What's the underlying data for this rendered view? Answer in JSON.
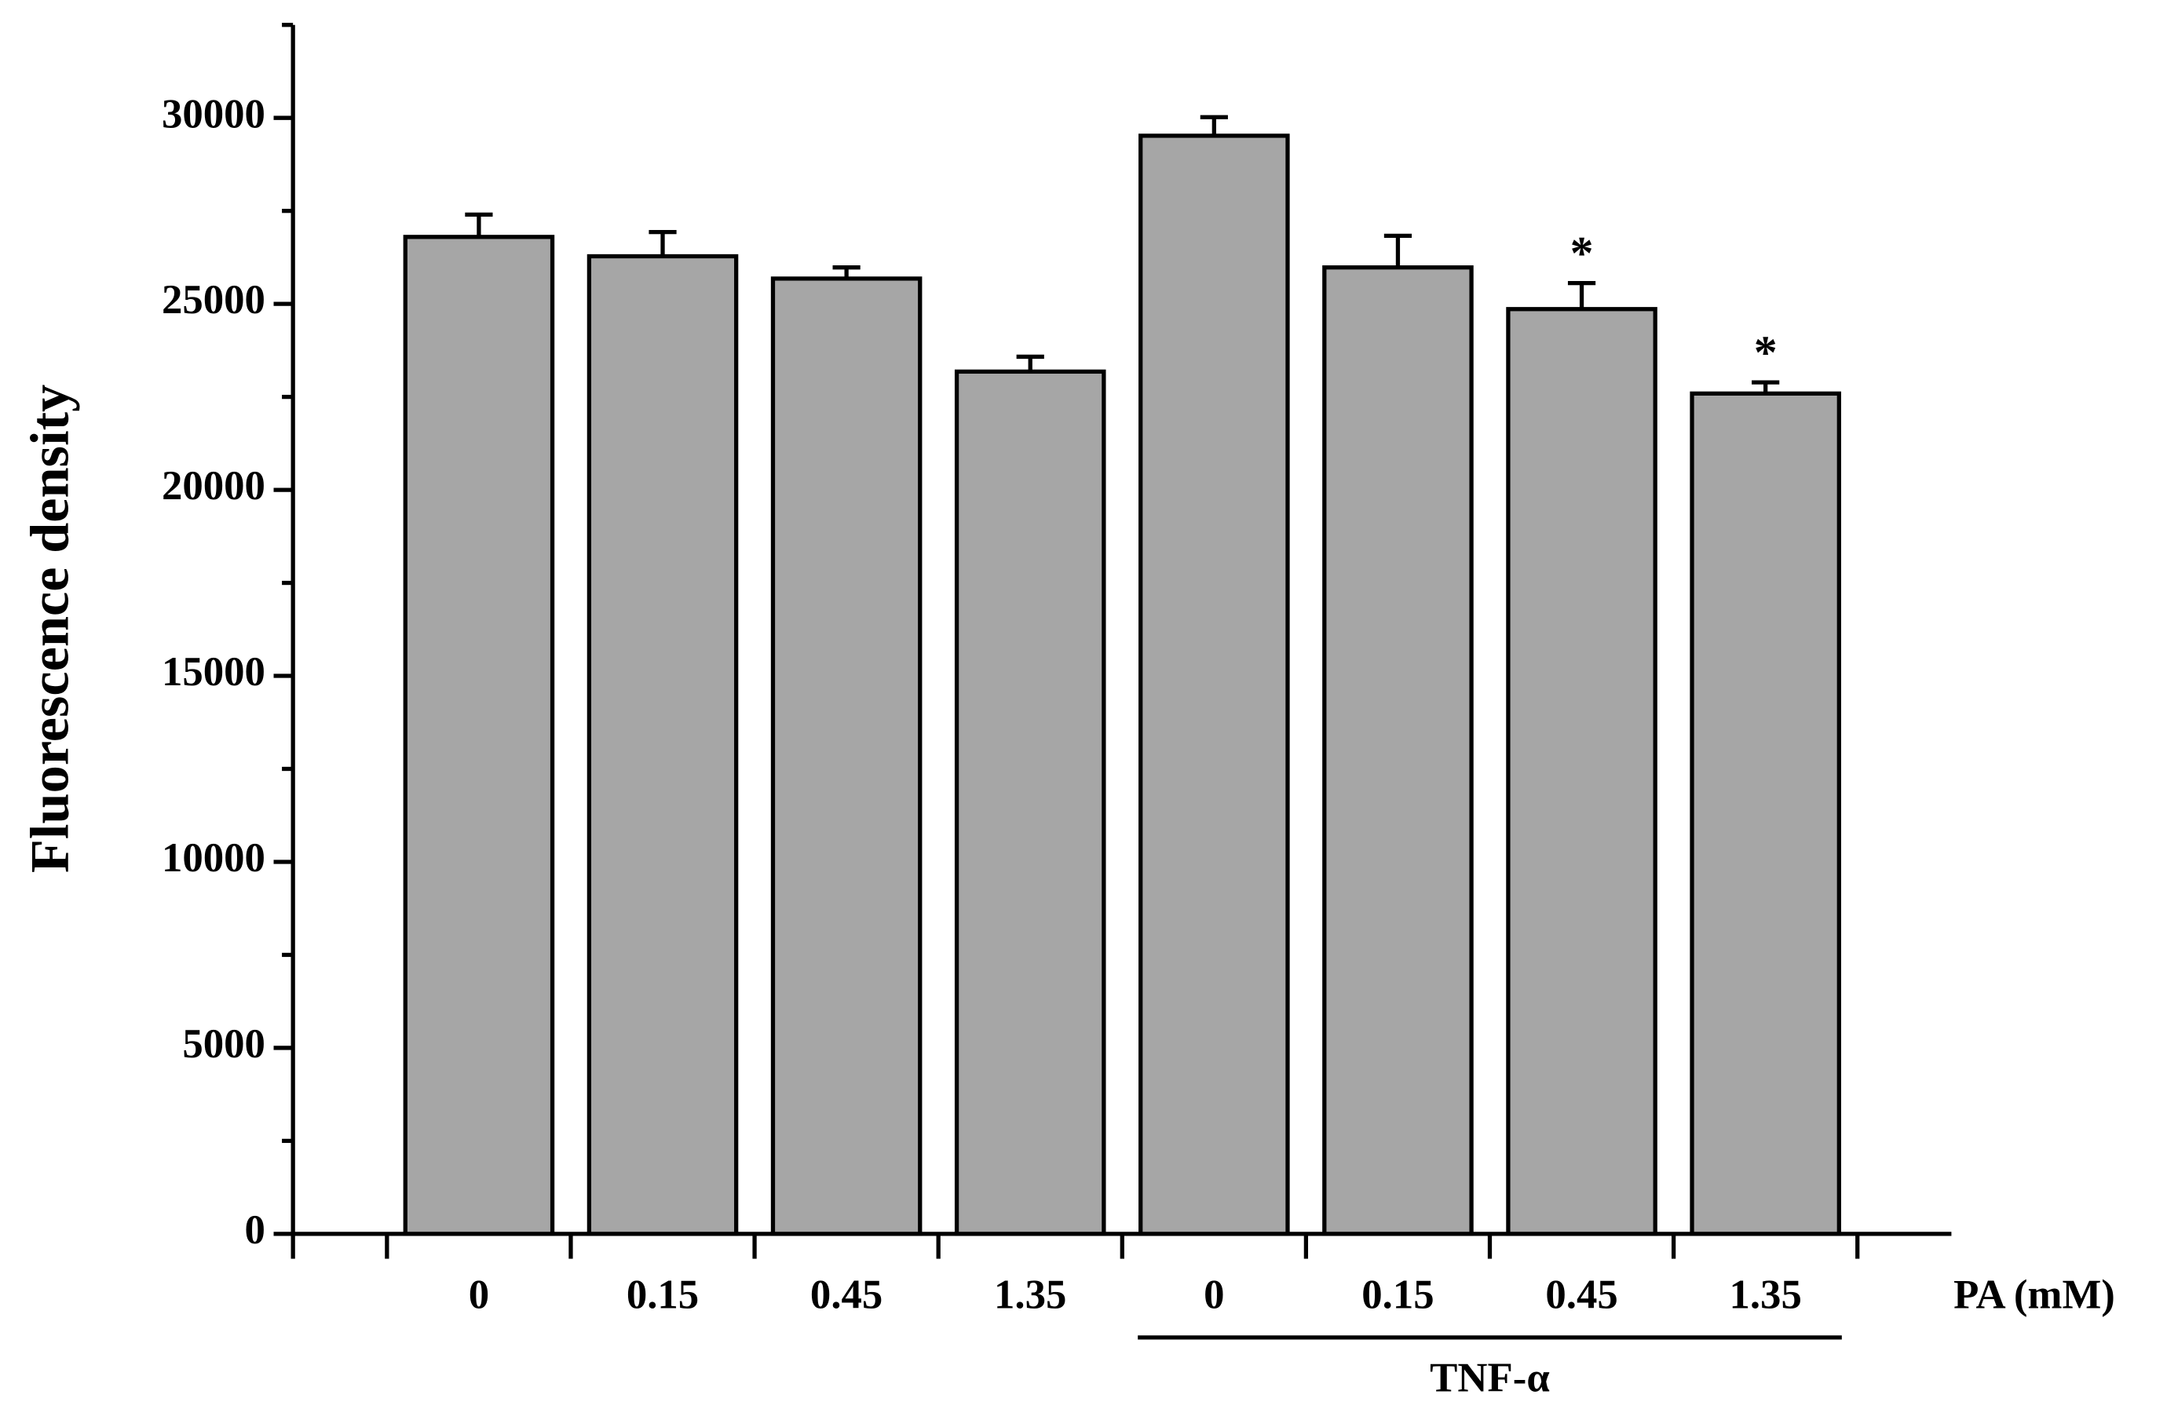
{
  "chart_data": {
    "type": "bar",
    "y_label": "Fluorescence density",
    "x_label": "PA (mM)",
    "categories": [
      "0",
      "0.15",
      "0.45",
      "1.35",
      "0",
      "0.15",
      "0.45",
      "1.35"
    ],
    "values": [
      26800,
      26280,
      25680,
      23180,
      29520,
      25980,
      24860,
      22590
    ],
    "errors": [
      600,
      650,
      300,
      400,
      500,
      850,
      700,
      300
    ],
    "color": "#a6a6a6",
    "significance": [
      null,
      null,
      null,
      null,
      null,
      null,
      "*",
      "*"
    ],
    "group": {
      "label": "TNF-α",
      "members": [
        false,
        false,
        false,
        false,
        true,
        true,
        true,
        true
      ]
    },
    "ylim": [
      0,
      32500
    ],
    "yticks": [
      0,
      5000,
      10000,
      15000,
      20000,
      25000,
      30000
    ],
    "minor_yticks": [
      2500,
      7500,
      12500,
      17500,
      22500,
      27500,
      32500
    ],
    "grid": false
  }
}
